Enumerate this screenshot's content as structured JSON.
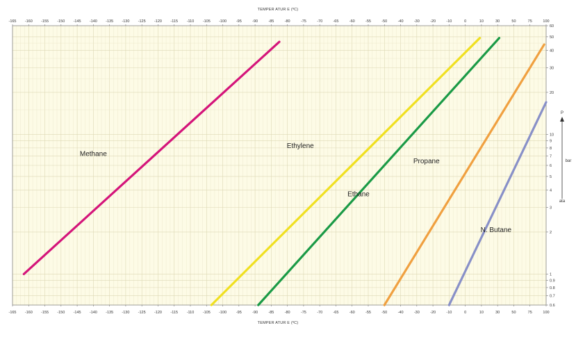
{
  "chart_data": {
    "type": "line",
    "x_axis": {
      "label": "TEMPER ATUR E (ºC)",
      "ticks": [
        "-165",
        "-160",
        "-155",
        "-150",
        "-145",
        "-140",
        "-135",
        "-130",
        "-125",
        "-120",
        "-115",
        "-110",
        "-105",
        "-100",
        "-95",
        "-90",
        "-85",
        "-80",
        "-75",
        "-70",
        "-65",
        "-60",
        "-55",
        "-50",
        "-40",
        "-30",
        "-20",
        "-10",
        "0",
        "10",
        "30",
        "50",
        "75",
        "100"
      ]
    },
    "y_axis": {
      "scale": "log",
      "unit_label": "bar",
      "top_label": "P",
      "bottom_label": "ata",
      "ticks": [
        "0.6",
        "0.7",
        "0.8",
        "0.9",
        "1",
        "2",
        "3",
        "4",
        "5",
        "6",
        "7",
        "8",
        "9",
        "10",
        "20",
        "30",
        "40",
        "50",
        "60"
      ]
    },
    "series": [
      {
        "name": "Methane",
        "color": "#d4147a",
        "x": [
          -161.5,
          -82.5
        ],
        "y": [
          1.0,
          46
        ]
      },
      {
        "name": "Ethylene",
        "color": "#f0e020",
        "x": [
          -103.5,
          9
        ],
        "y": [
          0.6,
          49
        ]
      },
      {
        "name": "Ethane",
        "color": "#1a9a46",
        "x": [
          -89,
          32
        ],
        "y": [
          0.6,
          49
        ]
      },
      {
        "name": "Propane",
        "color": "#f0a040",
        "x": [
          -50,
          97
        ],
        "y": [
          0.6,
          44
        ]
      },
      {
        "name": "N. Butane",
        "color": "#8890c8",
        "x": [
          -10,
          100
        ],
        "y": [
          0.6,
          17
        ]
      }
    ]
  }
}
